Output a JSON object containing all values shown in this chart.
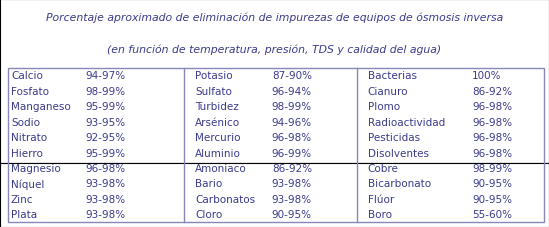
{
  "title_line1": "Porcentaje aproximado de eliminación de impurezas de equipos de ósmosis inversa",
  "title_line2": "(en función de temperatura, presión, TDS y calidad del agua)",
  "bg_title": "#ffffff",
  "bg_table": "#dddaed",
  "text_color": "#3a3a8c",
  "divider_color": "#8888b8",
  "col1": [
    [
      "Calcio",
      "94-97%"
    ],
    [
      "Fosfato",
      "98-99%"
    ],
    [
      "Manganeso",
      "95-99%"
    ],
    [
      "Sodio",
      "93-95%"
    ],
    [
      "Nitrato",
      "92-95%"
    ],
    [
      "Hierro",
      "95-99%"
    ],
    [
      "Magnesio",
      "96-98%"
    ],
    [
      "Níquel",
      "93-98%"
    ],
    [
      "Zinc",
      "93-98%"
    ],
    [
      "Plata",
      "93-98%"
    ]
  ],
  "col2": [
    [
      "Potasio",
      "87-90%"
    ],
    [
      "Sulfato",
      "96-94%"
    ],
    [
      "Turbidez",
      "98-99%"
    ],
    [
      "Arsénico",
      "94-96%"
    ],
    [
      "Mercurio",
      "96-98%"
    ],
    [
      "Aluminio",
      "96-99%"
    ],
    [
      "Amoniaco",
      "86-92%"
    ],
    [
      "Bario",
      "93-98%"
    ],
    [
      "Carbonatos",
      "93-98%"
    ],
    [
      "Cloro",
      "90-95%"
    ]
  ],
  "col3": [
    [
      "Bacterias",
      "100%"
    ],
    [
      "Cianuro",
      "86-92%"
    ],
    [
      "Plomo",
      "96-98%"
    ],
    [
      "Radioactividad",
      "96-98%"
    ],
    [
      "Pesticidas",
      "96-98%"
    ],
    [
      "Disolventes",
      "96-98%"
    ],
    [
      "Cobre",
      "98-99%"
    ],
    [
      "Bicarbonato",
      "90-95%"
    ],
    [
      "Flúor",
      "90-95%"
    ],
    [
      "Boro",
      "55-60%"
    ]
  ],
  "font_size": 7.5,
  "title_font_size": 7.8
}
